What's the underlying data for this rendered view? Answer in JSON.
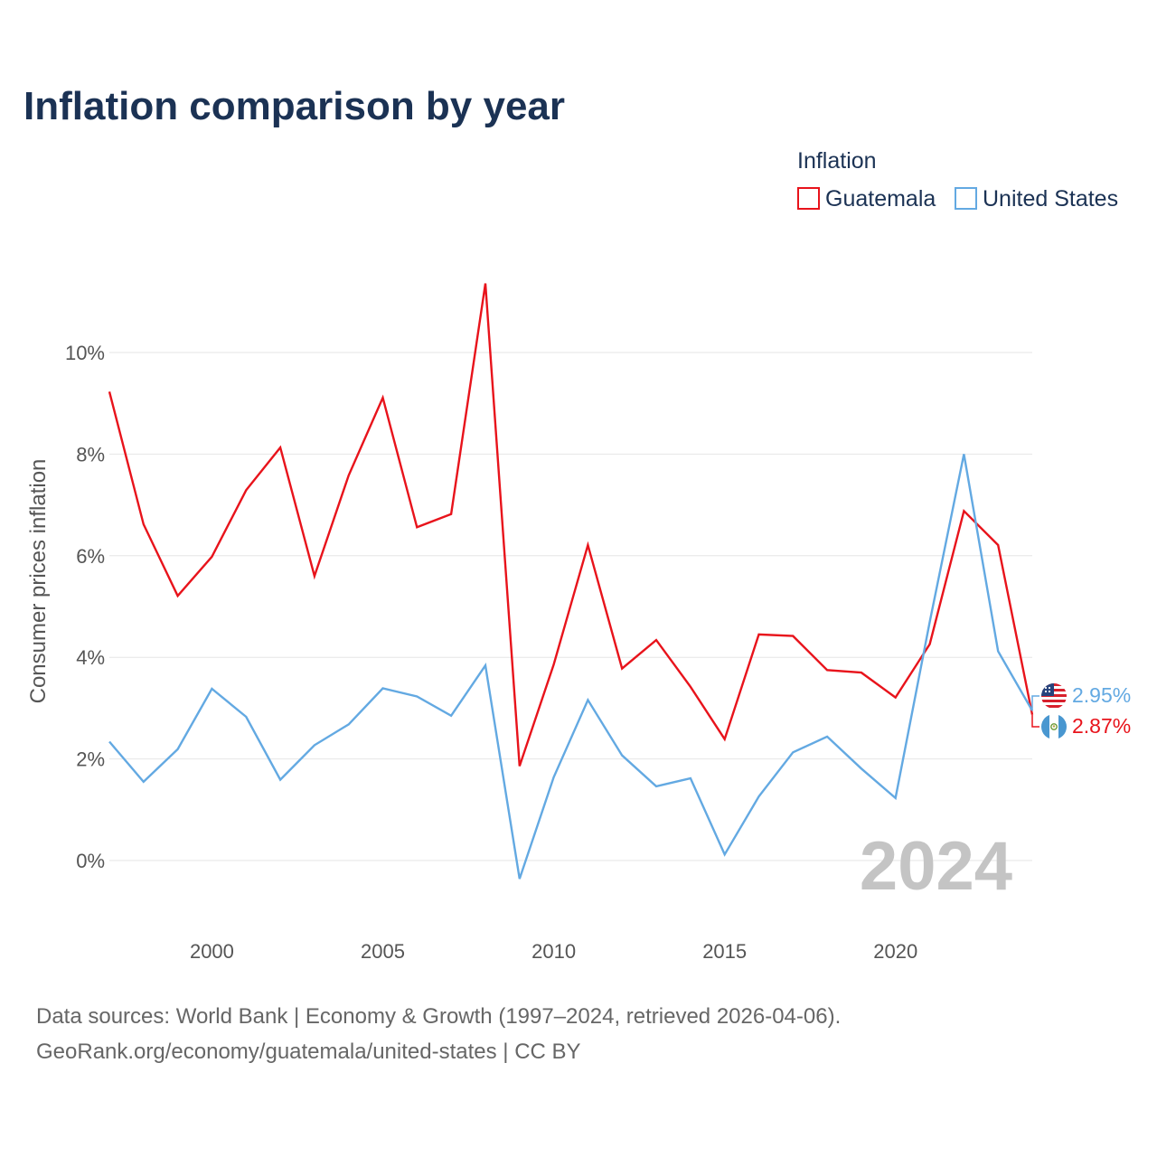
{
  "title": "Inflation comparison by year",
  "legend": {
    "title": "Inflation",
    "items": [
      "Guatemala",
      "United States"
    ]
  },
  "chart_data": {
    "type": "line",
    "title": "Inflation comparison by year",
    "ylabel": "Consumer prices inflation",
    "xlabel": "",
    "x": [
      1997,
      1998,
      1999,
      2000,
      2001,
      2002,
      2003,
      2004,
      2005,
      2006,
      2007,
      2008,
      2009,
      2010,
      2011,
      2012,
      2013,
      2014,
      2015,
      2016,
      2017,
      2018,
      2019,
      2020,
      2021,
      2022,
      2023,
      2024
    ],
    "xticks": [
      2000,
      2005,
      2010,
      2015,
      2020
    ],
    "yticks": [
      0,
      2,
      4,
      6,
      8,
      10
    ],
    "ytick_labels": [
      "0%",
      "2%",
      "4%",
      "6%",
      "8%",
      "10%"
    ],
    "xlim": [
      1997,
      2024
    ],
    "ylim": [
      -0.5,
      11.6
    ],
    "series": [
      {
        "name": "Guatemala",
        "color": "#e8131b",
        "values": [
          9.23,
          6.62,
          5.21,
          5.98,
          7.29,
          8.13,
          5.6,
          7.58,
          9.11,
          6.56,
          6.82,
          11.36,
          1.86,
          3.86,
          6.21,
          3.78,
          4.34,
          3.42,
          2.39,
          4.45,
          4.42,
          3.75,
          3.7,
          3.21,
          4.26,
          6.88,
          6.21,
          2.87
        ]
      },
      {
        "name": "United States",
        "color": "#63a9e2",
        "values": [
          2.34,
          1.55,
          2.19,
          3.38,
          2.83,
          1.59,
          2.27,
          2.68,
          3.39,
          3.23,
          2.85,
          3.84,
          -0.36,
          1.64,
          3.16,
          2.07,
          1.46,
          1.62,
          0.12,
          1.26,
          2.13,
          2.44,
          1.81,
          1.23,
          4.7,
          8.0,
          4.12,
          2.95
        ]
      }
    ],
    "end_labels": [
      {
        "series": "United States",
        "text": "2.95%",
        "color": "#63a9e2"
      },
      {
        "series": "Guatemala",
        "text": "2.87%",
        "color": "#e8131b"
      }
    ],
    "year_mark": "2024",
    "grid": true
  },
  "source": {
    "line1": "Data sources: World Bank | Economy & Growth (1997–2024, retrieved 2026-04-06).",
    "line2": "GeoRank.org/economy/guatemala/united-states | CC BY"
  }
}
